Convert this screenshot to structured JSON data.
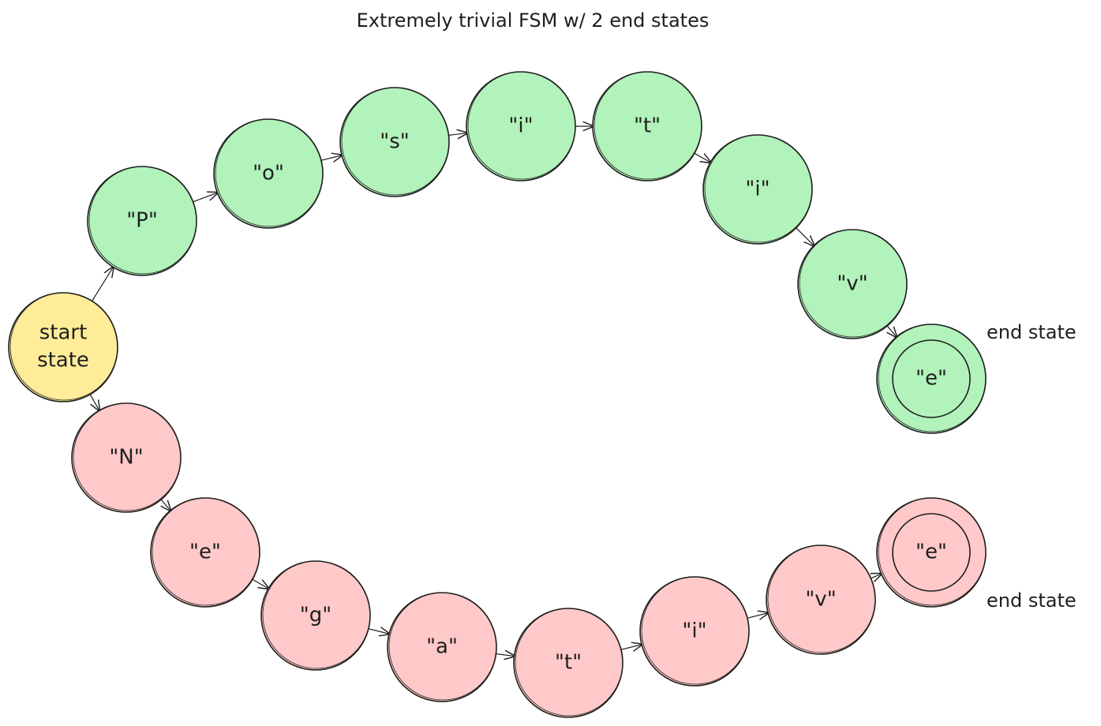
{
  "title": "Extremely trivial FSM w/ 2 end states",
  "colors": {
    "accept": "#b2f2bb",
    "reject": "#ffc9c9",
    "start": "#ffec99",
    "stroke": "#1e1e1e"
  },
  "start_state": {
    "label_line1": "start",
    "label_line2": "state"
  },
  "end_state_label": "end state",
  "top_chain": [
    "\"P\"",
    "\"o\"",
    "\"s\"",
    "\"i\"",
    "\"t\"",
    "\"i\"",
    "\"v\"",
    "\"e\""
  ],
  "bottom_chain": [
    "\"N\"",
    "\"e\"",
    "\"g\"",
    "\"a\"",
    "\"t\"",
    "\"i\"",
    "\"v\"",
    "\"e\""
  ]
}
